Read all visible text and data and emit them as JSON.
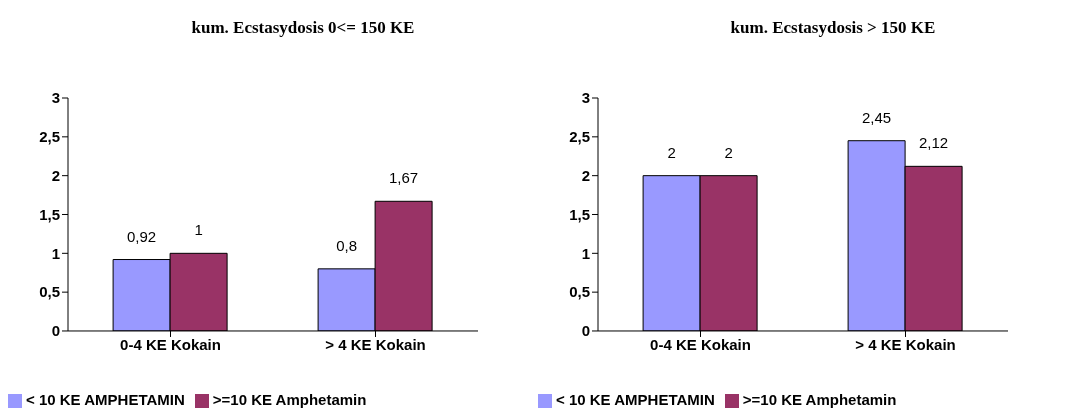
{
  "chart_data": [
    {
      "type": "bar",
      "title": "kum. Ecstasydosis 0<= 150 KE",
      "categories": [
        "0-4 KE Kokain",
        "> 4 KE Kokain"
      ],
      "ylim": [
        0,
        3
      ],
      "yticks": [
        0,
        {
          "value": 0.5,
          "label": "0,5"
        },
        1,
        {
          "value": 1.5,
          "label": "1,5"
        },
        2,
        {
          "value": 2.5,
          "label": "2,5"
        },
        3
      ],
      "grid": false,
      "legend": "bottom left",
      "series": [
        {
          "name": "< 10 KE AMPHETAMIN",
          "color": "#9999ff",
          "values": [
            0.92,
            0.8
          ],
          "value_labels": [
            "0,92",
            "0,8"
          ]
        },
        {
          "name": ">=10 KE Amphetamin",
          "color": "#993366",
          "values": [
            1,
            1.67
          ],
          "value_labels": [
            "1",
            "1,67"
          ]
        }
      ]
    },
    {
      "type": "bar",
      "title": "kum. Ecstasydosis > 150 KE",
      "categories": [
        "0-4 KE Kokain",
        "> 4 KE Kokain"
      ],
      "ylim": [
        0,
        3
      ],
      "yticks": [
        0,
        {
          "value": 0.5,
          "label": "0,5"
        },
        1,
        {
          "value": 1.5,
          "label": "1,5"
        },
        2,
        {
          "value": 2.5,
          "label": "2,5"
        },
        3
      ],
      "grid": false,
      "legend": "bottom left",
      "series": [
        {
          "name": "< 10 KE AMPHETAMIN",
          "color": "#9999ff",
          "values": [
            2,
            2.45
          ],
          "value_labels": [
            "2",
            "2,45"
          ]
        },
        {
          "name": ">=10 KE Amphetamin",
          "color": "#993366",
          "values": [
            2,
            2.12
          ],
          "value_labels": [
            "2",
            "2,12"
          ]
        }
      ]
    }
  ]
}
